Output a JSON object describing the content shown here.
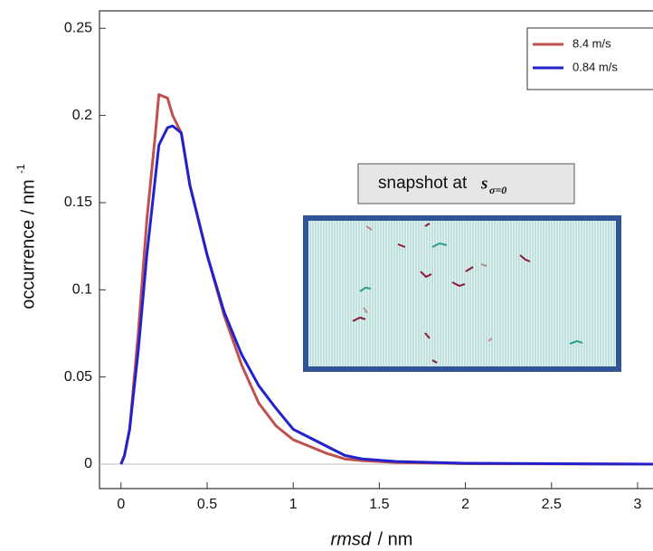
{
  "chart_data": {
    "type": "line",
    "y_label": "occurrence / nm",
    "y_label_superscript": "-1",
    "x_label_italic": "rmsd",
    "x_label_rest": " / nm",
    "annotation": "snapshot at",
    "annotation_symbol": "s",
    "annotation_subscript": "σ=0",
    "x": [
      0,
      0.02,
      0.05,
      0.1,
      0.15,
      0.2,
      0.22,
      0.27,
      0.3,
      0.35,
      0.4,
      0.45,
      0.5,
      0.6,
      0.7,
      0.8,
      0.9,
      1.0,
      1.1,
      1.2,
      1.3,
      1.4,
      1.6,
      2.0,
      3.1
    ],
    "series": [
      {
        "name": "8.4 m/s",
        "color": "#c0504d",
        "values": [
          0,
          0.005,
          0.02,
          0.075,
          0.14,
          0.19,
          0.212,
          0.21,
          0.2,
          0.19,
          0.16,
          0.14,
          0.12,
          0.085,
          0.057,
          0.035,
          0.022,
          0.014,
          0.01,
          0.006,
          0.003,
          0.002,
          0.001,
          0.0003,
          0
        ]
      },
      {
        "name": "0.84 m/s",
        "color": "#2222cc",
        "values": [
          0,
          0.005,
          0.02,
          0.065,
          0.12,
          0.165,
          0.183,
          0.193,
          0.194,
          0.19,
          0.16,
          0.14,
          0.12,
          0.087,
          0.063,
          0.045,
          0.032,
          0.02,
          0.015,
          0.01,
          0.005,
          0.003,
          0.0015,
          0.0005,
          0
        ]
      }
    ],
    "xlim": [
      -0.125,
      3.1
    ],
    "ylim": [
      -0.014,
      0.26
    ],
    "xticks": [
      0,
      0.5,
      1,
      1.5,
      2,
      2.5,
      3
    ],
    "yticks": [
      0,
      0.05,
      0.1,
      0.15,
      0.2,
      0.25
    ],
    "legend": "upper right"
  }
}
